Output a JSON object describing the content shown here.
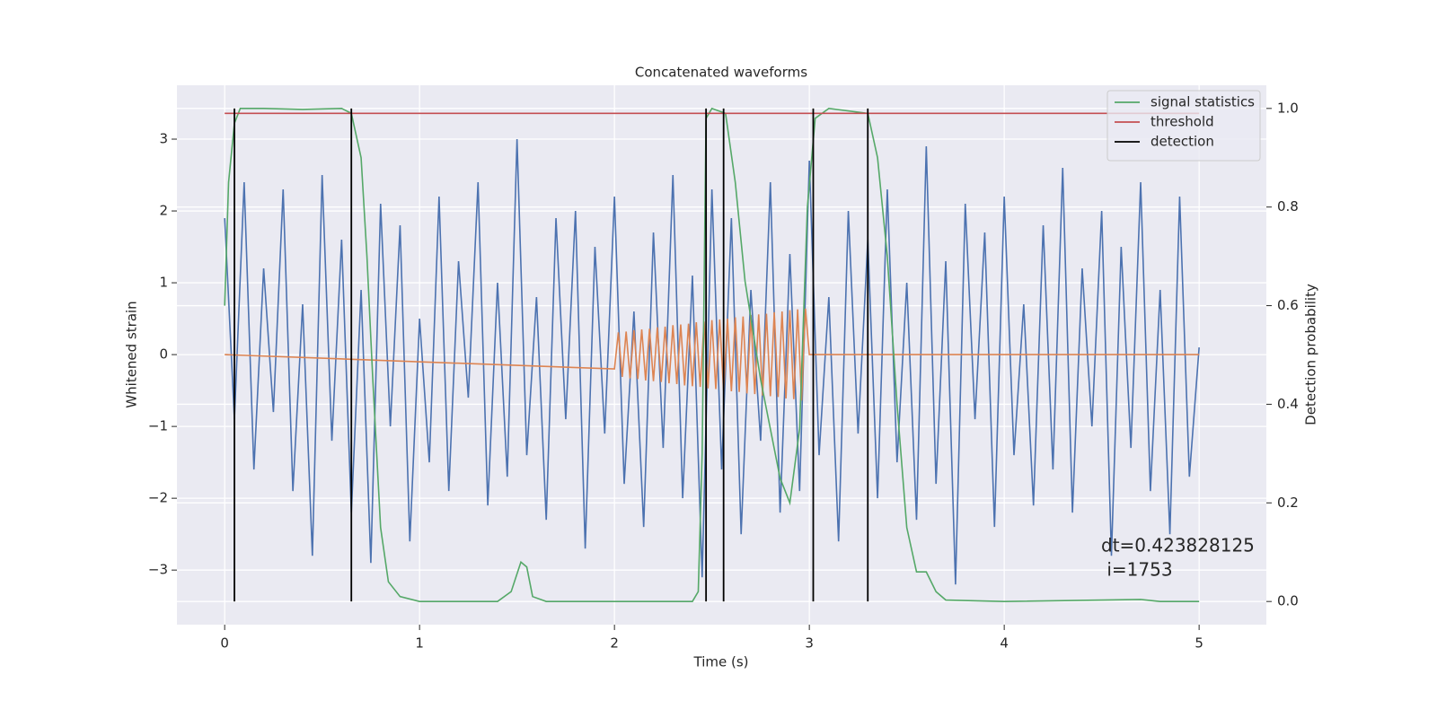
{
  "chart_data": {
    "type": "line",
    "title": "Concatenated waveforms",
    "xlabel": "Time (s)",
    "ylabel": "Whitened strain",
    "y2label": "Detection probability",
    "annotation": [
      "dt=0.423828125",
      " i=1753"
    ],
    "xlim": [
      -0.245,
      5.345
    ],
    "ylim": [
      -3.76,
      3.75
    ],
    "y2lim": [
      -0.047,
      1.047
    ],
    "xticks": [
      0,
      1,
      2,
      3,
      4,
      5
    ],
    "yticks": [
      {
        "value": -3,
        "label": "−3"
      },
      {
        "value": -2,
        "label": "−2"
      },
      {
        "value": -1,
        "label": "−1"
      },
      0,
      1,
      2,
      3
    ],
    "y2ticks": [
      {
        "value": 0,
        "label": "0.0"
      },
      0.2,
      0.4,
      0.6,
      0.8,
      {
        "value": 1,
        "label": "1.0"
      }
    ],
    "grid": true,
    "legend": "upper right",
    "series": [
      {
        "color": "#4c72b0",
        "axis": "y",
        "x": [
          0,
          0.05,
          0.1,
          0.15,
          0.2,
          0.25,
          0.3,
          0.35,
          0.4,
          0.45,
          0.5,
          0.55,
          0.6,
          0.65,
          0.7,
          0.75,
          0.8,
          0.85,
          0.9,
          0.95,
          1.0,
          1.05,
          1.1,
          1.15,
          1.2,
          1.25,
          1.3,
          1.35,
          1.4,
          1.45,
          1.5,
          1.55,
          1.6,
          1.65,
          1.7,
          1.75,
          1.8,
          1.85,
          1.9,
          1.95,
          2.0,
          2.05,
          2.1,
          2.15,
          2.2,
          2.25,
          2.3,
          2.35,
          2.4,
          2.45,
          2.5,
          2.55,
          2.6,
          2.65,
          2.7,
          2.75,
          2.8,
          2.85,
          2.9,
          2.95,
          3.0,
          3.05,
          3.1,
          3.15,
          3.2,
          3.25,
          3.3,
          3.35,
          3.4,
          3.45,
          3.5,
          3.55,
          3.6,
          3.65,
          3.7,
          3.75,
          3.8,
          3.85,
          3.9,
          3.95,
          4.0,
          4.05,
          4.1,
          4.15,
          4.2,
          4.25,
          4.3,
          4.35,
          4.4,
          4.45,
          4.5,
          4.55,
          4.6,
          4.65,
          4.7,
          4.75,
          4.8,
          4.85,
          4.9,
          4.95,
          5.0
        ],
        "values": [
          1.9,
          -0.9,
          2.4,
          -1.6,
          1.2,
          -0.8,
          2.3,
          -1.9,
          0.7,
          -2.8,
          2.5,
          -1.2,
          1.6,
          -2.2,
          0.9,
          -2.9,
          2.1,
          -1.0,
          1.8,
          -2.6,
          0.5,
          -1.5,
          2.2,
          -1.9,
          1.3,
          -0.6,
          2.4,
          -2.1,
          1.0,
          -1.7,
          3.0,
          -1.4,
          0.8,
          -2.3,
          1.9,
          -0.9,
          2.0,
          -2.7,
          1.5,
          -1.1,
          2.2,
          -1.8,
          0.6,
          -2.4,
          1.7,
          -1.3,
          2.5,
          -2.0,
          1.1,
          -3.1,
          2.3,
          -1.6,
          1.9,
          -2.5,
          0.9,
          -1.2,
          2.4,
          -2.2,
          1.4,
          -1.9,
          2.7,
          -1.4,
          0.8,
          -2.6,
          2.0,
          -1.1,
          1.6,
          -2.0,
          2.3,
          -1.5,
          1.0,
          -2.3,
          2.9,
          -1.8,
          1.3,
          -3.2,
          2.1,
          -0.9,
          1.7,
          -2.4,
          2.2,
          -1.4,
          0.7,
          -2.1,
          1.8,
          -1.6,
          2.6,
          -2.2,
          1.2,
          -1.0,
          2.0,
          -2.8,
          1.5,
          -1.3,
          2.4,
          -1.9,
          0.9,
          -2.5,
          2.2,
          -1.7,
          0.1
        ]
      },
      {
        "color": "#dd8452",
        "axis": "y",
        "x": [
          0,
          2.0,
          2.02,
          2.04,
          2.06,
          2.08,
          2.1,
          2.12,
          2.14,
          2.16,
          2.18,
          2.2,
          2.22,
          2.24,
          2.26,
          2.28,
          2.3,
          2.32,
          2.34,
          2.36,
          2.38,
          2.4,
          2.42,
          2.44,
          2.46,
          2.48,
          2.5,
          2.52,
          2.54,
          2.56,
          2.58,
          2.6,
          2.62,
          2.64,
          2.66,
          2.68,
          2.7,
          2.72,
          2.74,
          2.76,
          2.78,
          2.8,
          2.82,
          2.84,
          2.86,
          2.88,
          2.9,
          2.92,
          2.94,
          2.96,
          2.98,
          3.0,
          5.0
        ],
        "values": [
          0,
          -0.2,
          0.31,
          -0.31,
          0.32,
          -0.33,
          0.34,
          -0.34,
          0.35,
          -0.36,
          0.36,
          -0.37,
          0.38,
          -0.38,
          0.39,
          -0.4,
          0.41,
          -0.41,
          0.42,
          -0.43,
          0.43,
          -0.44,
          0.45,
          -0.45,
          0.46,
          -0.47,
          0.48,
          -0.48,
          0.49,
          -0.5,
          0.5,
          -0.51,
          0.52,
          -0.52,
          0.53,
          -0.54,
          0.55,
          -0.55,
          0.56,
          -0.57,
          0.57,
          -0.58,
          0.59,
          -0.59,
          0.6,
          -0.61,
          0.62,
          -0.62,
          0.63,
          -0.64,
          0.64,
          0,
          0
        ]
      },
      {
        "name": "signal statistics",
        "color": "#55a868",
        "axis": "y2",
        "x": [
          0,
          0.02,
          0.05,
          0.08,
          0.2,
          0.4,
          0.6,
          0.65,
          0.7,
          0.73,
          0.76,
          0.8,
          0.84,
          0.9,
          1.0,
          1.4,
          1.47,
          1.52,
          1.55,
          1.58,
          1.65,
          2.0,
          2.4,
          2.43,
          2.45,
          2.47,
          2.5,
          2.57,
          2.62,
          2.67,
          2.75,
          2.85,
          2.9,
          2.95,
          2.99,
          3.03,
          3.1,
          3.3,
          3.35,
          3.4,
          3.45,
          3.5,
          3.55,
          3.6,
          3.65,
          3.7,
          4.0,
          4.7,
          4.8,
          5.0
        ],
        "values": [
          0.6,
          0.85,
          0.97,
          1.0,
          1.0,
          0.998,
          1.0,
          0.99,
          0.9,
          0.7,
          0.45,
          0.15,
          0.04,
          0.01,
          0.0,
          0.0,
          0.02,
          0.08,
          0.07,
          0.01,
          0.0,
          0.0,
          0.0,
          0.02,
          0.3,
          0.98,
          1.0,
          0.99,
          0.85,
          0.65,
          0.45,
          0.25,
          0.2,
          0.35,
          0.8,
          0.98,
          1.0,
          0.99,
          0.9,
          0.7,
          0.4,
          0.15,
          0.06,
          0.06,
          0.02,
          0.003,
          0.0,
          0.004,
          0.0,
          0.0
        ]
      },
      {
        "name": "threshold",
        "color": "#c44e52",
        "axis": "y2",
        "x": [
          0,
          5
        ],
        "values": [
          0.99,
          0.99
        ]
      },
      {
        "name": "detection",
        "color": "#000000",
        "axis": "y2",
        "type": "vline",
        "span": [
          0,
          1
        ],
        "x": [
          0.05,
          0.65,
          2.47,
          2.56,
          3.02,
          3.3
        ]
      }
    ]
  }
}
